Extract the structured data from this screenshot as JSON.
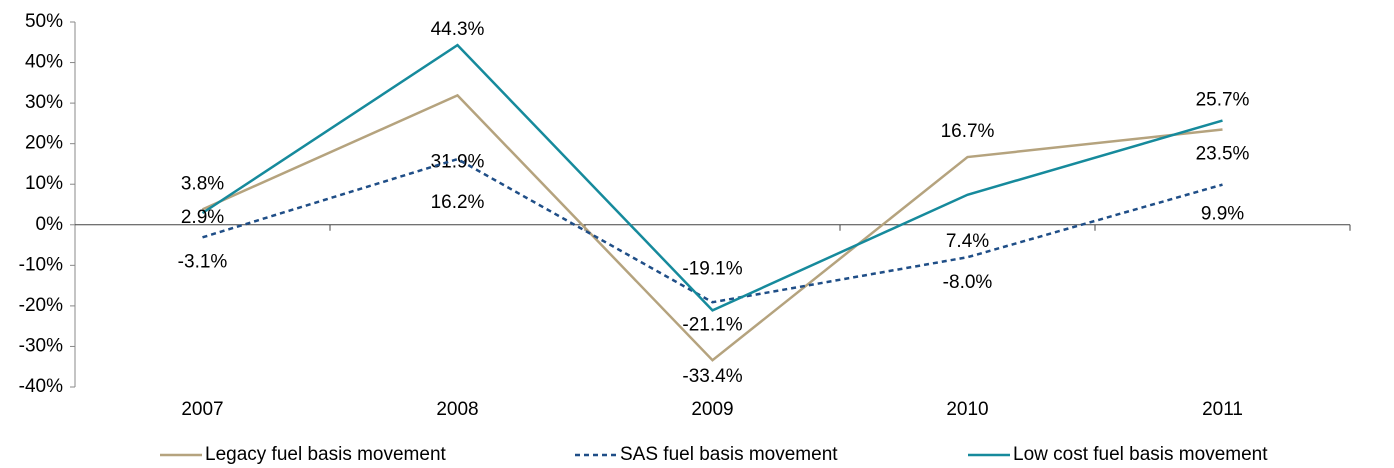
{
  "chart_data": {
    "type": "line",
    "categories": [
      "2007",
      "2008",
      "2009",
      "2010",
      "2011"
    ],
    "series": [
      {
        "name": "Legacy fuel basis movement",
        "color": "#b5a37e",
        "dash": false,
        "values": [
          3.8,
          31.9,
          -33.4,
          16.7,
          23.5
        ],
        "value_labels": [
          "3.8%",
          "31.9%",
          "-33.4%",
          "16.7%",
          "23.5%"
        ]
      },
      {
        "name": "SAS fuel basis movement",
        "color": "#1f4e87",
        "dash": true,
        "values": [
          -3.1,
          16.2,
          -19.1,
          -8.0,
          9.9
        ],
        "value_labels": [
          "-3.1%",
          "16.2%",
          "-19.1%",
          "-8.0%",
          "9.9%"
        ]
      },
      {
        "name": "Low cost fuel basis movement",
        "color": "#168a9c",
        "dash": false,
        "values": [
          2.9,
          44.3,
          -21.1,
          7.4,
          25.7
        ],
        "value_labels": [
          "2.9%",
          "44.3%",
          "-21.1%",
          "7.4%",
          "25.7%"
        ]
      }
    ],
    "ylim": [
      -40,
      50
    ],
    "yticks": [
      {
        "value": -40,
        "label": "-40%"
      },
      {
        "value": -30,
        "label": "-30%"
      },
      {
        "value": -20,
        "label": "-20%"
      },
      {
        "value": -10,
        "label": "-10%"
      },
      {
        "value": 0,
        "label": "0%"
      },
      {
        "value": 10,
        "label": "10%"
      },
      {
        "value": 20,
        "label": "20%"
      },
      {
        "value": 30,
        "label": "30%"
      },
      {
        "value": 40,
        "label": "40%"
      },
      {
        "value": 50,
        "label": "50%"
      }
    ],
    "legend": "bottom"
  }
}
